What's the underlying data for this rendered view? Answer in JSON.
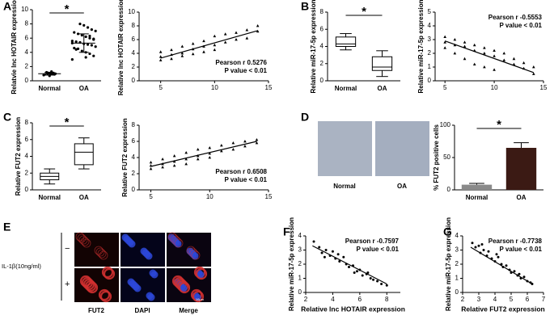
{
  "panel_labels": [
    "A",
    "B",
    "C",
    "D",
    "E",
    "F",
    "G"
  ],
  "image_panels": {
    "D": {
      "labels": [
        "Normal",
        "OA"
      ]
    },
    "E": {
      "treatment": "IL-1β(10ng/ml)",
      "rows": [
        "−",
        "+"
      ],
      "columns": [
        "FUT2",
        "DAPI",
        "Merge"
      ],
      "scale": "10μm"
    }
  },
  "chart_data": [
    {
      "type": "strip",
      "ylabel": "Relatvie lnc HOTAIR expression",
      "categories": [
        "Normal",
        "OA"
      ],
      "ylim": [
        0,
        10
      ],
      "yticks": [
        0,
        2,
        4,
        6,
        8,
        10
      ],
      "significance": "*",
      "values": [
        [
          0.8,
          0.9,
          1.0,
          1.0,
          1.1,
          1.2,
          0.9,
          1.0,
          1.1,
          1.3,
          0.7,
          1.0
        ],
        [
          3.0,
          3.5,
          3.8,
          4.0,
          4.2,
          4.5,
          4.6,
          4.8,
          5.0,
          5.1,
          5.2,
          5.4,
          5.5,
          5.6,
          5.8,
          6.0,
          6.2,
          6.4,
          6.6,
          6.8,
          7.0,
          7.2,
          7.5,
          7.8,
          8.0,
          4.4,
          5.3,
          5.9,
          6.3,
          3.3
        ]
      ],
      "summary": [
        {
          "mean": 1.0,
          "sd": 0.2
        },
        {
          "mean": 5.3,
          "sd": 1.3
        }
      ]
    },
    {
      "type": "scatter",
      "marker": "triangle",
      "ylabel": "Relative lnc HOTAIR expression",
      "xlim": [
        3,
        15
      ],
      "xticks": [
        5,
        10,
        15
      ],
      "ylim": [
        0,
        10
      ],
      "yticks": [
        0,
        2,
        4,
        6,
        8,
        10
      ],
      "annotations": [
        "Pearson r 0.5276",
        "P value < 0.01"
      ],
      "x": [
        5,
        5,
        5,
        6,
        6,
        6,
        7,
        7,
        7,
        8,
        8,
        8,
        9,
        9,
        9,
        10,
        10,
        10,
        11,
        11,
        12,
        12,
        13,
        13,
        14,
        14
      ],
      "y": [
        3.5,
        3.0,
        4.2,
        3.8,
        4.5,
        3.2,
        4.0,
        5.0,
        3.6,
        4.6,
        5.4,
        3.9,
        5.0,
        5.8,
        4.2,
        5.2,
        6.5,
        4.5,
        5.6,
        6.8,
        6.0,
        7.0,
        6.2,
        7.4,
        7.2,
        8.0
      ],
      "fit": {
        "x": [
          5,
          14
        ],
        "y": [
          3.3,
          7.3
        ]
      }
    },
    {
      "type": "box",
      "ylabel": "Relative miR-17-5p expression",
      "categories": [
        "Normal",
        "OA"
      ],
      "ylim": [
        0,
        8
      ],
      "yticks": [
        0,
        2,
        4,
        6,
        8
      ],
      "significance": "*",
      "boxes": [
        {
          "min": 3.6,
          "q1": 4.0,
          "median": 4.3,
          "q3": 5.1,
          "max": 5.5
        },
        {
          "min": 0.5,
          "q1": 1.2,
          "median": 1.6,
          "q3": 2.8,
          "max": 3.5
        }
      ]
    },
    {
      "type": "scatter",
      "marker": "triangle",
      "ylabel": "Relative miR-17-5p expression",
      "xlim": [
        4,
        15
      ],
      "xticks": [
        5,
        10,
        15
      ],
      "ylim": [
        0,
        5
      ],
      "yticks": [
        0,
        1,
        2,
        3,
        4,
        5
      ],
      "annotations": [
        "Pearson r -0.5553",
        "P value < 0.01"
      ],
      "x": [
        5,
        5,
        5,
        6,
        6,
        6,
        7,
        7,
        7,
        8,
        8,
        8,
        9,
        9,
        9,
        10,
        10,
        10,
        11,
        11,
        12,
        12,
        13,
        13,
        14,
        14
      ],
      "y": [
        2.8,
        3.2,
        2.4,
        2.6,
        3.0,
        2.0,
        2.5,
        2.8,
        1.6,
        2.2,
        2.6,
        1.2,
        2.0,
        2.4,
        1.0,
        1.8,
        2.2,
        0.8,
        1.5,
        2.0,
        1.2,
        1.6,
        0.9,
        1.3,
        0.5,
        1.0
      ],
      "fit": {
        "x": [
          5,
          14
        ],
        "y": [
          2.9,
          0.6
        ]
      }
    },
    {
      "type": "box",
      "ylabel": "Relative FUT2 expression",
      "categories": [
        "Normal",
        "OA"
      ],
      "ylim": [
        0,
        8
      ],
      "yticks": [
        0,
        2,
        4,
        6,
        8
      ],
      "significance": "*",
      "boxes": [
        {
          "min": 0.7,
          "q1": 1.2,
          "median": 1.6,
          "q3": 2.0,
          "max": 2.5
        },
        {
          "min": 2.5,
          "q1": 3.0,
          "median": 4.5,
          "q3": 5.5,
          "max": 6.2
        }
      ]
    },
    {
      "type": "scatter",
      "marker": "triangle",
      "ylabel": "Relative FUT2 expression",
      "xlim": [
        4,
        15
      ],
      "xticks": [
        5,
        10,
        15
      ],
      "ylim": [
        0,
        8
      ],
      "yticks": [
        0,
        2,
        4,
        6,
        8
      ],
      "annotations": [
        "Pearson r 0.6508",
        "P value < 0.01"
      ],
      "x": [
        5,
        5,
        5,
        6,
        6,
        6,
        7,
        7,
        7,
        8,
        8,
        8,
        9,
        9,
        9,
        10,
        10,
        10,
        11,
        11,
        12,
        12,
        13,
        13,
        14,
        14
      ],
      "y": [
        3.0,
        2.6,
        3.4,
        3.2,
        3.8,
        2.8,
        3.5,
        4.2,
        3.0,
        3.8,
        4.6,
        3.2,
        4.2,
        5.0,
        3.8,
        4.5,
        5.2,
        4.0,
        4.8,
        5.5,
        5.0,
        5.8,
        5.4,
        6.0,
        5.8,
        6.2
      ],
      "fit": {
        "x": [
          5,
          14
        ],
        "y": [
          2.9,
          6.0
        ]
      }
    },
    {
      "type": "bar",
      "ylabel": "% FUT2 positive cells",
      "categories": [
        "Normal",
        "OA"
      ],
      "ylim": [
        0,
        100
      ],
      "yticks": [
        0,
        50,
        100
      ],
      "significance": "*",
      "values": [
        8,
        65
      ],
      "errors": [
        2,
        8
      ],
      "colors": [
        "#8a8a8a",
        "#3b1a14"
      ]
    },
    {
      "type": "scatter",
      "marker": "circle",
      "xlabel": "Relative lnc HOTAIR expression",
      "ylabel": "Relative miR-17-5p expression",
      "xlim": [
        2,
        9
      ],
      "xticks": [
        2,
        4,
        6,
        8
      ],
      "ylim": [
        0,
        4
      ],
      "yticks": [
        0,
        1,
        2,
        3,
        4
      ],
      "annotations": [
        "Pearson r -0.7597",
        "P value < 0.01"
      ],
      "x": [
        2.6,
        3.0,
        3.2,
        3.5,
        3.8,
        4.0,
        4.2,
        4.5,
        4.8,
        5.0,
        5.2,
        5.5,
        5.8,
        6.0,
        6.2,
        6.5,
        6.8,
        7.0,
        7.3,
        7.6,
        8.0,
        3.4,
        4.4,
        5.6,
        6.6
      ],
      "y": [
        3.6,
        3.2,
        2.8,
        3.0,
        2.6,
        2.9,
        2.4,
        2.2,
        2.5,
        2.0,
        1.8,
        1.9,
        1.5,
        1.6,
        1.2,
        1.3,
        1.0,
        0.9,
        0.8,
        0.6,
        0.5,
        2.5,
        2.7,
        1.4,
        1.4
      ],
      "fit": {
        "x": [
          2.5,
          8.0
        ],
        "y": [
          3.3,
          0.6
        ]
      }
    },
    {
      "type": "scatter",
      "marker": "circle",
      "xlabel": "Relative FUT2 expression",
      "ylabel": "Relative miR-17-5p expression",
      "xlim": [
        2,
        7
      ],
      "xticks": [
        2,
        3,
        4,
        5,
        6,
        7
      ],
      "ylim": [
        0,
        4
      ],
      "yticks": [
        0,
        1,
        2,
        3,
        4
      ],
      "annotations": [
        "Pearson r -0.7738",
        "P value < 0.01"
      ],
      "x": [
        2.6,
        2.8,
        3.0,
        3.1,
        3.3,
        3.5,
        3.6,
        3.8,
        4.0,
        4.2,
        4.4,
        4.5,
        4.7,
        4.9,
        5.0,
        5.2,
        5.4,
        5.6,
        5.8,
        6.0,
        6.2,
        6.3,
        3.2,
        4.1,
        5.5
      ],
      "y": [
        3.5,
        3.2,
        3.3,
        2.8,
        3.0,
        2.6,
        2.9,
        2.4,
        2.2,
        2.5,
        2.0,
        1.8,
        1.9,
        1.6,
        1.4,
        1.5,
        1.2,
        1.0,
        1.1,
        0.8,
        0.7,
        0.6,
        3.4,
        2.7,
        1.3
      ],
      "fit": {
        "x": [
          2.5,
          6.3
        ],
        "y": [
          3.2,
          0.6
        ]
      }
    }
  ]
}
